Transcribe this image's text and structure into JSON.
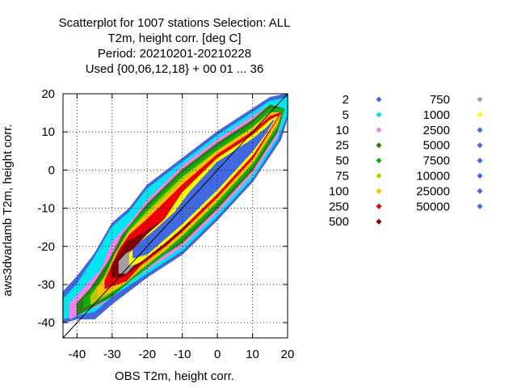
{
  "chart_data": {
    "type": "scatter",
    "title": [
      "Scatterplot for 1007 stations Selection: ALL",
      "T2m, height corr. [deg C]",
      "Period: 20210201-20210228",
      "Used {00,06,12,18} + 00 01 ... 36"
    ],
    "xlabel": "OBS T2m, height corr.",
    "ylabel": "aws3dvarlamb T2m, height corr.",
    "xlim": [
      -44,
      20
    ],
    "ylim": [
      -44,
      20
    ],
    "xticks": [
      -40,
      -30,
      -20,
      -10,
      0,
      10,
      20
    ],
    "yticks": [
      20,
      10,
      0,
      -10,
      -20,
      -30,
      -40
    ],
    "grid": true,
    "diagonal_line": true,
    "legend_placement": "right",
    "legend": [
      {
        "label": "2",
        "color": "#4466dd"
      },
      {
        "label": "5",
        "color": "#00e5ee"
      },
      {
        "label": "10",
        "color": "#ee82ee"
      },
      {
        "label": "25",
        "color": "#2e7d0e"
      },
      {
        "label": "50",
        "color": "#10b010"
      },
      {
        "label": "75",
        "color": "#b8c800"
      },
      {
        "label": "100",
        "color": "#ffc000"
      },
      {
        "label": "250",
        "color": "#ee0000"
      },
      {
        "label": "500",
        "color": "#800000"
      },
      {
        "label": "750",
        "color": "#a0a0a0"
      },
      {
        "label": "1000",
        "color": "#ffff00"
      },
      {
        "label": "2500",
        "color": "#4169e1"
      },
      {
        "label": "5000",
        "color": "#4169e1"
      },
      {
        "label": "7500",
        "color": "#4169e1"
      },
      {
        "label": "10000",
        "color": "#4169e1"
      },
      {
        "label": "25000",
        "color": "#4169e1"
      },
      {
        "label": "50000",
        "color": "#4169e1"
      }
    ],
    "density_bands": [
      {
        "label": "2",
        "color": "#4466dd",
        "lower": [
          [
            -44,
            -40
          ],
          [
            -40,
            -39
          ],
          [
            -35,
            -39
          ],
          [
            -30,
            -35
          ],
          [
            -20,
            -28
          ],
          [
            -10,
            -22
          ],
          [
            0,
            -13
          ],
          [
            10,
            -3
          ],
          [
            18,
            8
          ],
          [
            20,
            14
          ],
          [
            20,
            20
          ]
        ],
        "upper": [
          [
            -44,
            -32
          ],
          [
            -40,
            -28
          ],
          [
            -35,
            -22
          ],
          [
            -30,
            -14
          ],
          [
            -25,
            -10
          ],
          [
            -20,
            -4
          ],
          [
            -10,
            3
          ],
          [
            0,
            10
          ],
          [
            10,
            16
          ],
          [
            15,
            19
          ],
          [
            20,
            20
          ]
        ]
      },
      {
        "label": "5",
        "color": "#00e5ee",
        "lower": [
          [
            -44,
            -39
          ],
          [
            -40,
            -38
          ],
          [
            -35,
            -37
          ],
          [
            -30,
            -33
          ],
          [
            -20,
            -27
          ],
          [
            -10,
            -21
          ],
          [
            0,
            -12
          ],
          [
            10,
            -2
          ],
          [
            17,
            8
          ],
          [
            20,
            15
          ],
          [
            20,
            19
          ]
        ],
        "upper": [
          [
            -44,
            -34
          ],
          [
            -40,
            -30
          ],
          [
            -35,
            -23
          ],
          [
            -30,
            -15
          ],
          [
            -25,
            -11
          ],
          [
            -20,
            -5
          ],
          [
            -10,
            2
          ],
          [
            0,
            9
          ],
          [
            10,
            15
          ],
          [
            15,
            18
          ],
          [
            20,
            19
          ]
        ]
      },
      {
        "label": "10",
        "color": "#ee82ee",
        "lower": [
          [
            -42,
            -39
          ],
          [
            -38,
            -37
          ],
          [
            -33,
            -35
          ],
          [
            -28,
            -31
          ],
          [
            -20,
            -26
          ],
          [
            -10,
            -20
          ],
          [
            0,
            -11
          ],
          [
            10,
            -1
          ],
          [
            17,
            9
          ],
          [
            19,
            16
          ]
        ],
        "upper": [
          [
            -42,
            -35
          ],
          [
            -38,
            -31
          ],
          [
            -33,
            -26
          ],
          [
            -30,
            -19
          ],
          [
            -25,
            -14
          ],
          [
            -20,
            -8
          ],
          [
            -10,
            1
          ],
          [
            0,
            8
          ],
          [
            10,
            14
          ],
          [
            15,
            17
          ],
          [
            19,
            16
          ]
        ]
      },
      {
        "label": "25",
        "color": "#2e7d0e",
        "lower": [
          [
            -40,
            -38
          ],
          [
            -36,
            -36
          ],
          [
            -30,
            -33
          ],
          [
            -25,
            -29
          ],
          [
            -20,
            -25
          ],
          [
            -10,
            -19
          ],
          [
            0,
            -10
          ],
          [
            10,
            0
          ],
          [
            17,
            10
          ],
          [
            19,
            16
          ]
        ],
        "upper": [
          [
            -40,
            -35
          ],
          [
            -36,
            -31
          ],
          [
            -31,
            -24
          ],
          [
            -27,
            -17
          ],
          [
            -20,
            -9
          ],
          [
            -10,
            0
          ],
          [
            0,
            7
          ],
          [
            10,
            13
          ],
          [
            15,
            17
          ],
          [
            19,
            16
          ]
        ]
      },
      {
        "label": "50",
        "color": "#10b010",
        "lower": [
          [
            -38,
            -36
          ],
          [
            -33,
            -34
          ],
          [
            -28,
            -31
          ],
          [
            -22,
            -27
          ],
          [
            -15,
            -22
          ],
          [
            -10,
            -18
          ],
          [
            0,
            -9
          ],
          [
            10,
            1
          ],
          [
            17,
            11
          ],
          [
            19,
            16
          ]
        ],
        "upper": [
          [
            -38,
            -34
          ],
          [
            -33,
            -29
          ],
          [
            -29,
            -22
          ],
          [
            -25,
            -15
          ],
          [
            -20,
            -10
          ],
          [
            -10,
            -1
          ],
          [
            0,
            6
          ],
          [
            10,
            12
          ],
          [
            15,
            16
          ],
          [
            19,
            16
          ]
        ]
      },
      {
        "label": "75",
        "color": "#b8c800",
        "lower": [
          [
            -36,
            -35
          ],
          [
            -32,
            -33
          ],
          [
            -27,
            -30
          ],
          [
            -22,
            -26
          ],
          [
            -15,
            -21
          ],
          [
            -10,
            -17
          ],
          [
            0,
            -8
          ],
          [
            10,
            2
          ],
          [
            17,
            12
          ],
          [
            18,
            15
          ]
        ],
        "upper": [
          [
            -36,
            -33
          ],
          [
            -32,
            -28
          ],
          [
            -29,
            -22
          ],
          [
            -25,
            -16
          ],
          [
            -20,
            -11
          ],
          [
            -10,
            -2
          ],
          [
            0,
            5
          ],
          [
            10,
            11
          ],
          [
            15,
            15
          ],
          [
            18,
            15
          ]
        ]
      },
      {
        "label": "100",
        "color": "#ffc000",
        "lower": [
          [
            -34,
            -33
          ],
          [
            -31,
            -32
          ],
          [
            -27,
            -30
          ],
          [
            -22,
            -26
          ],
          [
            -15,
            -21
          ],
          [
            -10,
            -17
          ],
          [
            0,
            -8
          ],
          [
            10,
            2
          ],
          [
            17,
            12
          ],
          [
            18,
            15
          ]
        ],
        "upper": [
          [
            -34,
            -31
          ],
          [
            -31,
            -27
          ],
          [
            -29,
            -22
          ],
          [
            -25,
            -16
          ],
          [
            -20,
            -12
          ],
          [
            -10,
            -3
          ],
          [
            0,
            5
          ],
          [
            10,
            11
          ],
          [
            15,
            15
          ],
          [
            18,
            15
          ]
        ]
      },
      {
        "label": "250",
        "color": "#ee0000",
        "lower": [
          [
            -32,
            -31
          ],
          [
            -29,
            -30
          ],
          [
            -26,
            -29
          ],
          [
            -22,
            -25
          ],
          [
            -15,
            -20
          ],
          [
            -10,
            -16
          ],
          [
            0,
            -7
          ],
          [
            10,
            3
          ],
          [
            16,
            12
          ],
          [
            18,
            15
          ]
        ],
        "upper": [
          [
            -32,
            -29
          ],
          [
            -30,
            -25
          ],
          [
            -28,
            -21
          ],
          [
            -25,
            -17
          ],
          [
            -20,
            -13
          ],
          [
            -10,
            -4
          ],
          [
            0,
            4
          ],
          [
            10,
            10
          ],
          [
            15,
            14
          ],
          [
            18,
            15
          ]
        ]
      },
      {
        "label": "500",
        "color": "#800000",
        "lower": [
          [
            -30,
            -28
          ],
          [
            -27,
            -28
          ],
          [
            -24,
            -26
          ],
          [
            -20,
            -23
          ],
          [
            -14,
            -19
          ],
          [
            -8,
            -14
          ]
        ],
        "upper": [
          [
            -30,
            -25
          ],
          [
            -28,
            -22
          ],
          [
            -26,
            -19
          ],
          [
            -22,
            -17
          ],
          [
            -15,
            -13
          ],
          [
            -8,
            -10
          ]
        ]
      },
      {
        "label": "750",
        "color": "#a0a0a0",
        "lower": [
          [
            -28,
            -27
          ],
          [
            -26,
            -27
          ],
          [
            -24,
            -25
          ],
          [
            -22,
            -24
          ],
          [
            -19,
            -22
          ]
        ],
        "upper": [
          [
            -28,
            -24
          ],
          [
            -26,
            -22
          ],
          [
            -24,
            -21
          ],
          [
            -22,
            -20
          ],
          [
            -19,
            -19
          ]
        ]
      },
      {
        "label": "1000",
        "color": "#ffff00",
        "lower": [
          [
            -25,
            -25
          ],
          [
            -22,
            -24
          ],
          [
            -15,
            -19
          ],
          [
            -10,
            -15
          ],
          [
            0,
            -6
          ],
          [
            10,
            4
          ],
          [
            15,
            11
          ],
          [
            17,
            14
          ]
        ],
        "upper": [
          [
            -25,
            -22
          ],
          [
            -23,
            -20
          ],
          [
            -20,
            -17
          ],
          [
            -15,
            -13
          ],
          [
            -10,
            -6
          ],
          [
            0,
            3
          ],
          [
            10,
            9
          ],
          [
            15,
            13
          ],
          [
            17,
            14
          ]
        ]
      },
      {
        "label": "2500",
        "color": "#4169e1",
        "lower": [
          [
            -24,
            -23
          ],
          [
            -20,
            -22
          ],
          [
            -15,
            -18
          ],
          [
            -10,
            -14
          ],
          [
            0,
            -5
          ],
          [
            10,
            5
          ],
          [
            14,
            10
          ],
          [
            16,
            13
          ]
        ],
        "upper": [
          [
            -24,
            -21
          ],
          [
            -22,
            -19
          ],
          [
            -18,
            -16
          ],
          [
            -12,
            -11
          ],
          [
            -8,
            -6
          ],
          [
            0,
            2
          ],
          [
            10,
            8
          ],
          [
            14,
            11
          ],
          [
            16,
            13
          ]
        ]
      }
    ]
  }
}
